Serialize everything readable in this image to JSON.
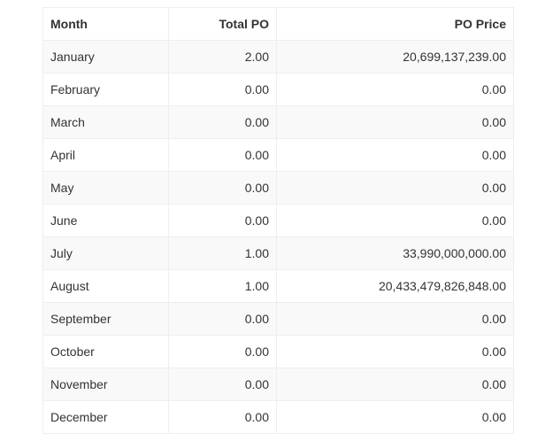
{
  "table": {
    "headers": {
      "month": "Month",
      "total_po": "Total PO",
      "po_price": "PO Price"
    },
    "rows": [
      {
        "month": "January",
        "total_po": "2.00",
        "po_price": "20,699,137,239.00"
      },
      {
        "month": "February",
        "total_po": "0.00",
        "po_price": "0.00"
      },
      {
        "month": "March",
        "total_po": "0.00",
        "po_price": "0.00"
      },
      {
        "month": "April",
        "total_po": "0.00",
        "po_price": "0.00"
      },
      {
        "month": "May",
        "total_po": "0.00",
        "po_price": "0.00"
      },
      {
        "month": "June",
        "total_po": "0.00",
        "po_price": "0.00"
      },
      {
        "month": "July",
        "total_po": "1.00",
        "po_price": "33,990,000,000.00"
      },
      {
        "month": "August",
        "total_po": "1.00",
        "po_price": "20,433,479,826,848.00"
      },
      {
        "month": "September",
        "total_po": "0.00",
        "po_price": "0.00"
      },
      {
        "month": "October",
        "total_po": "0.00",
        "po_price": "0.00"
      },
      {
        "month": "November",
        "total_po": "0.00",
        "po_price": "0.00"
      },
      {
        "month": "December",
        "total_po": "0.00",
        "po_price": "0.00"
      }
    ]
  }
}
